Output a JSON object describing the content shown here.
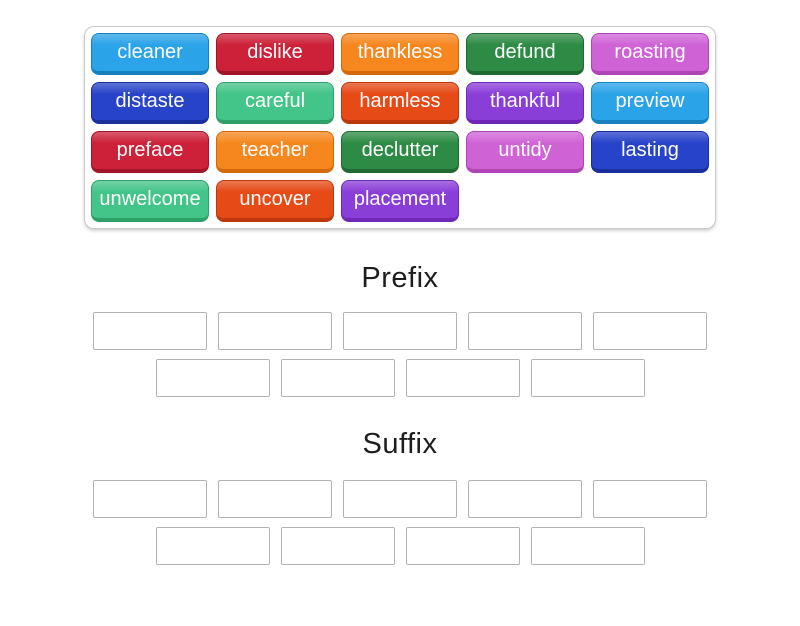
{
  "activity": {
    "type": "group-sort",
    "background_color": "#ffffff",
    "tile_text_color": "#ffffff",
    "slot_border_color": "#b3b3b3"
  },
  "word_bank": {
    "tiles": [
      {
        "label": "cleaner",
        "color": "#2aa3e8",
        "edge": "#1781c0"
      },
      {
        "label": "dislike",
        "color": "#cd2139",
        "edge": "#a2142a"
      },
      {
        "label": "thankless",
        "color": "#f6871f",
        "edge": "#d4690a"
      },
      {
        "label": "defund",
        "color": "#2e8b45",
        "edge": "#1f6a31"
      },
      {
        "label": "roasting",
        "color": "#cf63d6",
        "edge": "#ae44b5"
      },
      {
        "label": "distaste",
        "color": "#2743c9",
        "edge": "#1b2f9c"
      },
      {
        "label": "careful",
        "color": "#43c488",
        "edge": "#2da167"
      },
      {
        "label": "harmless",
        "color": "#e54a17",
        "edge": "#bd380c"
      },
      {
        "label": "thankful",
        "color": "#8a3ed8",
        "edge": "#6e28b5"
      },
      {
        "label": "preview",
        "color": "#2aa3e8",
        "edge": "#1781c0"
      },
      {
        "label": "preface",
        "color": "#cd2139",
        "edge": "#a2142a"
      },
      {
        "label": "teacher",
        "color": "#f6871f",
        "edge": "#d4690a"
      },
      {
        "label": "declutter",
        "color": "#2e8b45",
        "edge": "#1f6a31"
      },
      {
        "label": "untidy",
        "color": "#cf63d6",
        "edge": "#ae44b5"
      },
      {
        "label": "lasting",
        "color": "#2743c9",
        "edge": "#1b2f9c"
      },
      {
        "label": "unwelcome",
        "color": "#43c488",
        "edge": "#2da167"
      },
      {
        "label": "uncover",
        "color": "#e54a17",
        "edge": "#bd380c"
      },
      {
        "label": "placement",
        "color": "#8a3ed8",
        "edge": "#6e28b5"
      }
    ]
  },
  "groups": [
    {
      "title": "Prefix",
      "slot_rows": [
        5,
        4
      ]
    },
    {
      "title": "Suffix",
      "slot_rows": [
        5,
        4
      ]
    }
  ]
}
